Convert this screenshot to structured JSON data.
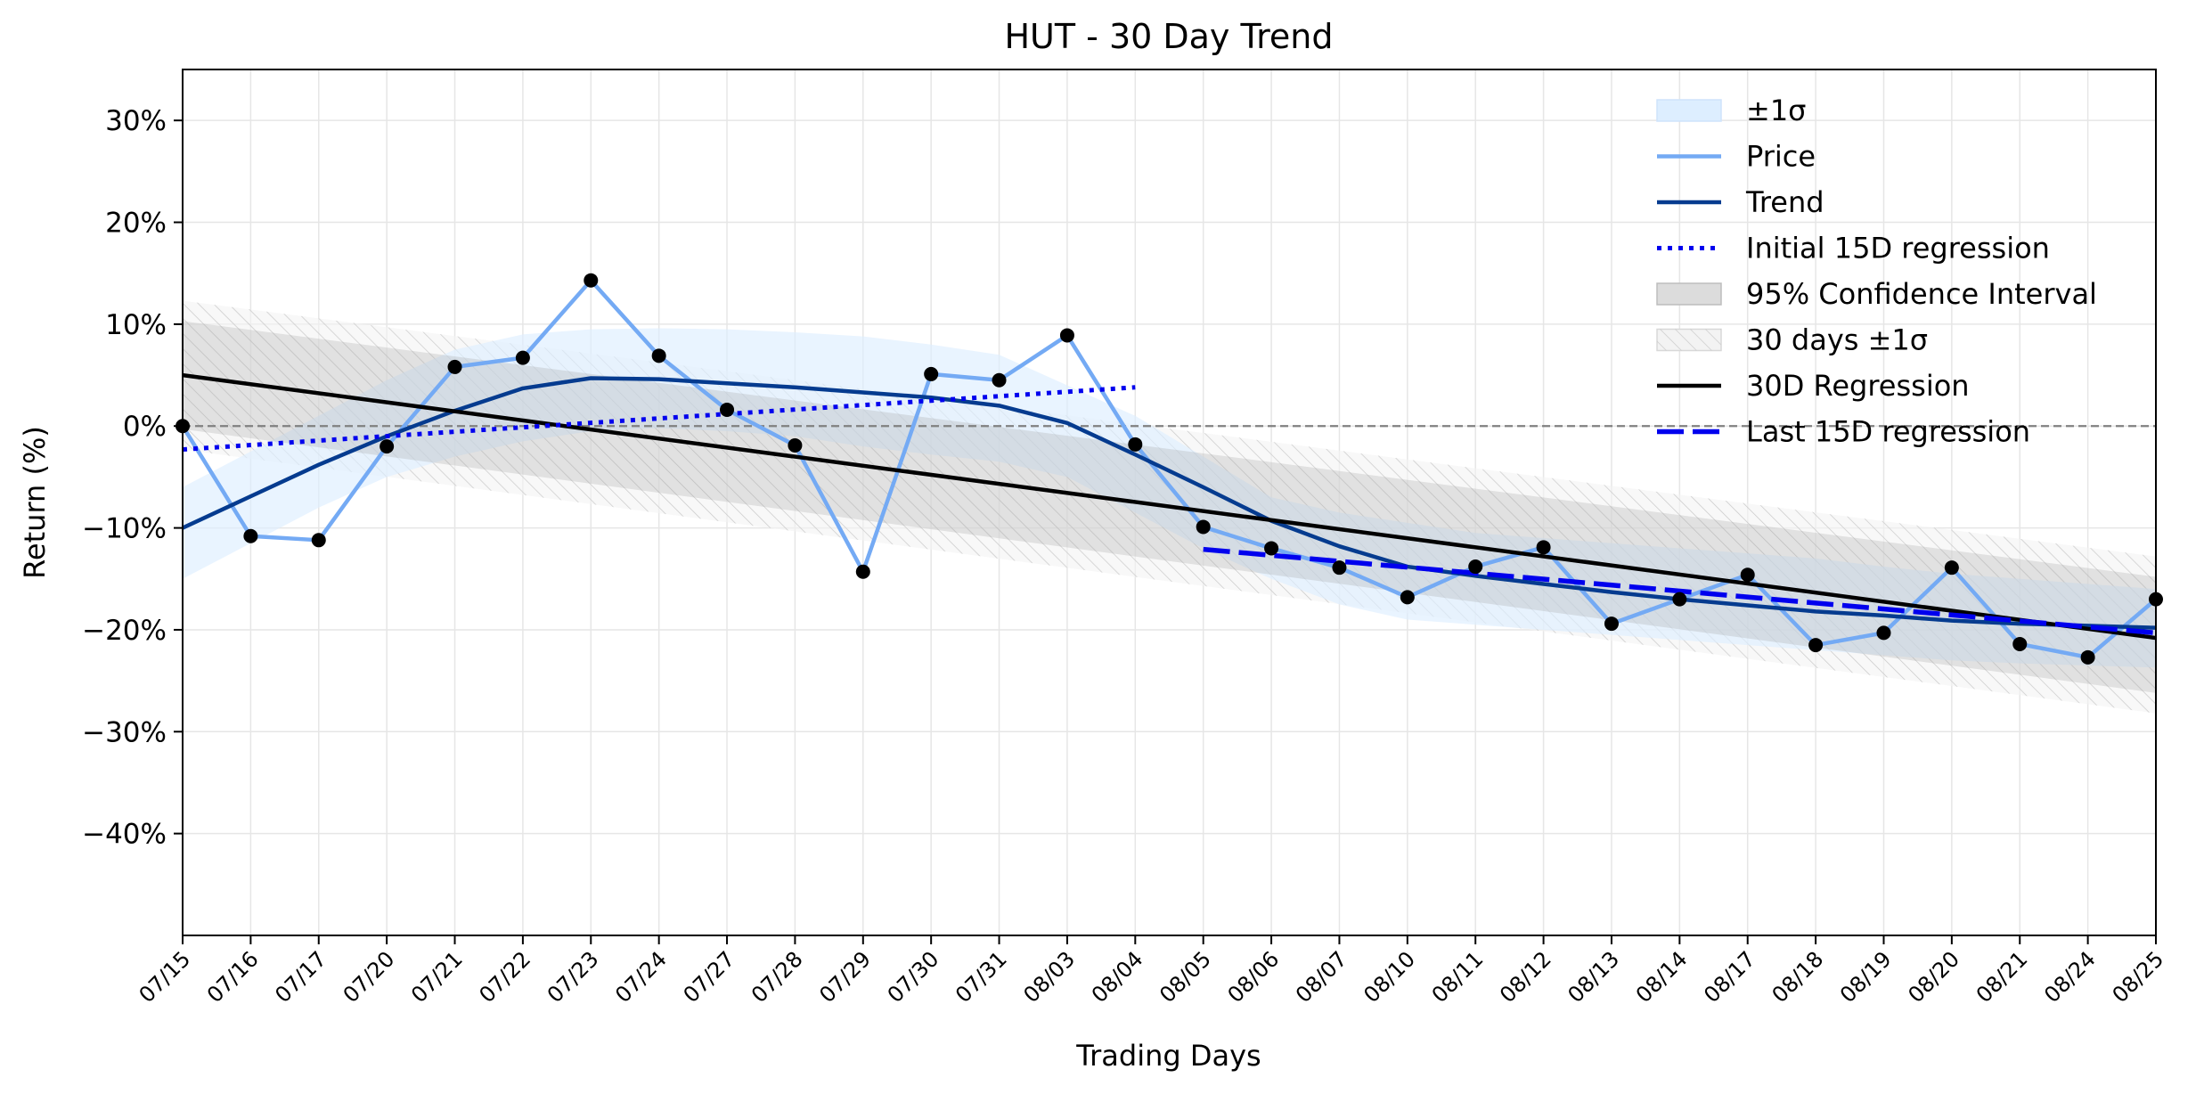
{
  "chart_data": {
    "type": "line",
    "title": "HUT - 30 Day Trend",
    "xlabel": "Trading Days",
    "ylabel": "Return (%)",
    "ylim": [
      -50,
      35
    ],
    "yticks": [
      30,
      20,
      10,
      0,
      -10,
      -20,
      -30,
      -40
    ],
    "ytick_labels": [
      "30%",
      "20%",
      "10%",
      "0%",
      "−10%",
      "−20%",
      "−30%",
      "−40%"
    ],
    "grid": true,
    "legend_position": "top-right",
    "categories": [
      "07/15",
      "07/16",
      "07/17",
      "07/20",
      "07/21",
      "07/22",
      "07/23",
      "07/24",
      "07/27",
      "07/28",
      "07/29",
      "07/30",
      "07/31",
      "08/03",
      "08/04",
      "08/05",
      "08/06",
      "08/07",
      "08/10",
      "08/11",
      "08/12",
      "08/13",
      "08/14",
      "08/17",
      "08/18",
      "08/19",
      "08/20",
      "08/21",
      "08/24",
      "08/25"
    ],
    "legend": [
      {
        "label": "±1σ",
        "swatch": "band-blue"
      },
      {
        "label": "Price",
        "swatch": "line-light"
      },
      {
        "label": "Trend",
        "swatch": "line-dark"
      },
      {
        "label": "Initial 15D regression",
        "swatch": "dotted"
      },
      {
        "label": "95% Confidence Interval",
        "swatch": "band-gray"
      },
      {
        "label": "30 days ±1σ",
        "swatch": "band-hatch"
      },
      {
        "label": "30D Regression",
        "swatch": "line-black"
      },
      {
        "label": "Last 15D regression",
        "swatch": "dashed"
      }
    ],
    "series": [
      {
        "name": "Price",
        "values": [
          0,
          -10.8,
          -11.2,
          -2.0,
          5.8,
          6.7,
          14.3,
          6.9,
          1.6,
          -1.9,
          -14.3,
          5.1,
          4.5,
          8.9,
          -1.8,
          -9.9,
          -12.0,
          -13.9,
          -16.8,
          -13.8,
          -11.9,
          -19.4,
          -17.0,
          -14.6,
          -21.5,
          -20.3,
          -13.9,
          -21.4,
          -22.7,
          -17.0
        ]
      },
      {
        "name": "Trend",
        "values": [
          -10.0,
          -6.9,
          -3.8,
          -1.0,
          1.5,
          3.7,
          4.7,
          4.6,
          4.2,
          3.8,
          3.3,
          2.8,
          2.0,
          0.3,
          -2.8,
          -6.0,
          -9.3,
          -11.8,
          -13.8,
          -14.7,
          -15.5,
          -16.3,
          -17.0,
          -17.6,
          -18.2,
          -18.6,
          -19.1,
          -19.4,
          -19.6,
          -19.8
        ]
      },
      {
        "name": "Initial 15D regression",
        "x_range": [
          0,
          14
        ],
        "y_range": [
          -2.3,
          3.8
        ]
      },
      {
        "name": "Last 15D regression",
        "x_range": [
          15,
          29
        ],
        "y_range": [
          -12.1,
          -20.3
        ]
      },
      {
        "name": "30D Regression",
        "x_range": [
          0,
          29
        ],
        "y_range": [
          5.0,
          -20.8
        ]
      },
      {
        "name": "95% Confidence Interval",
        "x_range": [
          0,
          29
        ],
        "upper": [
          10.3,
          -14.8
        ],
        "lower": [
          -0.3,
          -26.2
        ]
      },
      {
        "name": "30 days ±1σ",
        "x_range": [
          0,
          29
        ],
        "upper": [
          12.3,
          -12.8
        ],
        "lower": [
          -2.3,
          -28.2
        ]
      },
      {
        "name": "±1σ",
        "upper": [
          -6.0,
          -2.5,
          1.0,
          4.5,
          7.5,
          9.0,
          9.5,
          9.6,
          9.5,
          9.2,
          8.8,
          8.0,
          7.0,
          4.0,
          1.0,
          -3.0,
          -7.0,
          -8.5,
          -9.5,
          -10.5,
          -11.0,
          -11.5,
          -12.0,
          -12.5,
          -13.0,
          -13.8,
          -14.5,
          -15.0,
          -15.5,
          -16.0
        ],
        "lower": [
          -15.0,
          -11.5,
          -8.0,
          -5.0,
          -3.0,
          -1.5,
          -0.5,
          -0.2,
          -0.5,
          -1.0,
          -2.0,
          -2.8,
          -3.5,
          -5.0,
          -8.5,
          -12.0,
          -15.0,
          -17.5,
          -19.0,
          -19.5,
          -20.0,
          -20.5,
          -21.0,
          -21.5,
          -22.0,
          -22.5,
          -23.0,
          -23.3,
          -23.5,
          -23.7
        ]
      }
    ],
    "zero_line": 0
  },
  "colors": {
    "price": "#74aaf4",
    "trend": "#053b8f",
    "initial_reg": "#0000ee",
    "last_reg": "#0000ee",
    "regression": "#000000",
    "band_blue": "#ddeeff",
    "ci_gray": "#d6d6d6",
    "hatch": "#c8c8c8",
    "zero_line": "#808080",
    "grid": "#e6e6e6",
    "marker": "#000000"
  }
}
